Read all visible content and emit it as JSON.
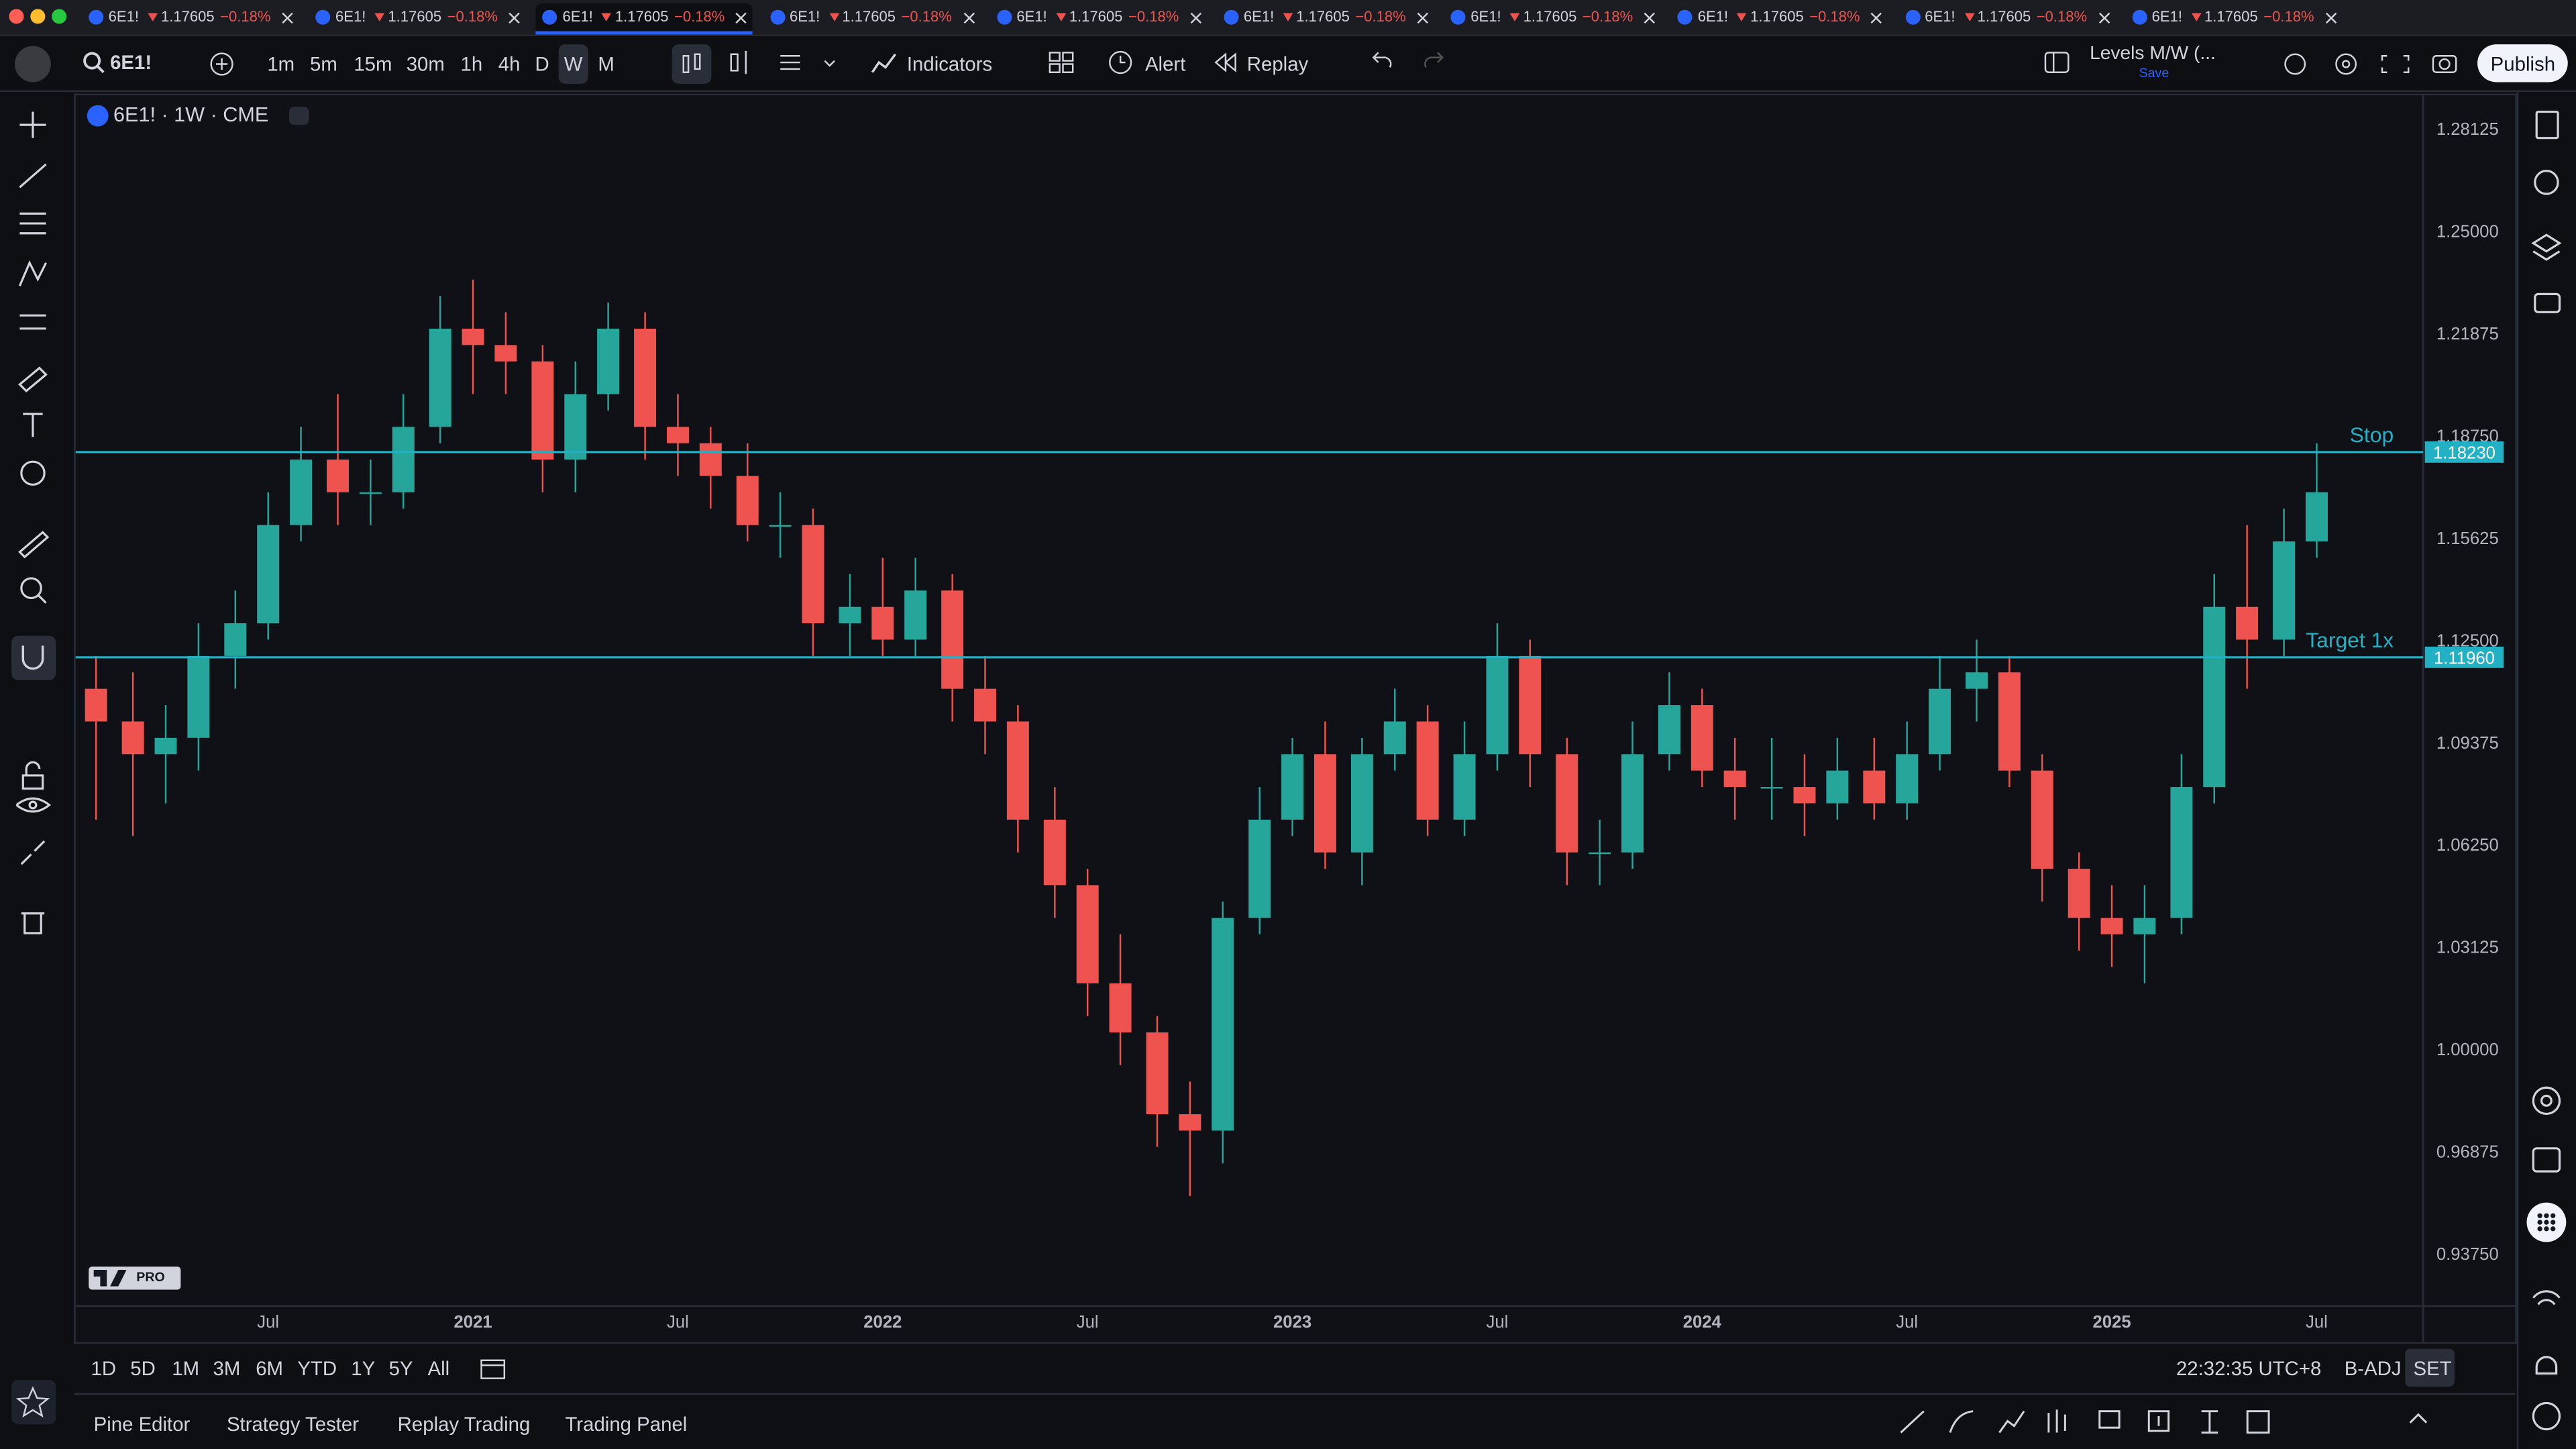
{
  "ui": {
    "tabs": [
      {
        "symbol": "6E1!",
        "price": "1.17605",
        "change": "−0.18%"
      },
      {
        "symbol": "6E1!",
        "price": "1.17605",
        "change": "−0.18%"
      },
      {
        "symbol": "6E1!",
        "price": "1.17605",
        "change": "−0.18%"
      },
      {
        "symbol": "6E1!",
        "price": "1.17605",
        "change": "−0.18%"
      },
      {
        "symbol": "6E1!",
        "price": "1.17605",
        "change": "−0.18%"
      },
      {
        "symbol": "6E1!",
        "price": "1.17605",
        "change": "−0.18%"
      },
      {
        "symbol": "6E1!",
        "price": "1.17605",
        "change": "−0.18%"
      },
      {
        "symbol": "6E1!",
        "price": "1.17605",
        "change": "−0.18%"
      },
      {
        "symbol": "6E1!",
        "price": "1.17605",
        "change": "−0.18%"
      },
      {
        "symbol": "6E1!",
        "price": "1.17605",
        "change": "−0.18%"
      }
    ],
    "symbol": "6E1!",
    "intervals": [
      "1m",
      "5m",
      "15m",
      "30m",
      "1h",
      "4h",
      "D",
      "W",
      "M"
    ],
    "active_interval": "W",
    "indicators": "Indicators",
    "alert": "Alert",
    "replay": "Replay",
    "layout_name": "Levels M/W (...",
    "save": "Save",
    "publish": "Publish",
    "legend": "6E1! · 1W · CME",
    "logo": "PRO",
    "ranges": [
      "1D",
      "5D",
      "1M",
      "3M",
      "6M",
      "YTD",
      "1Y",
      "5Y",
      "All"
    ],
    "clock": "22:32:35 UTC+8",
    "adjust": "B-ADJ",
    "session": "SET",
    "panels": [
      "Pine Editor",
      "Strategy Tester",
      "Replay Trading",
      "Trading Panel"
    ]
  },
  "chart_data": {
    "type": "candlestick",
    "up_color": "#26a69a",
    "down_color": "#ef5350",
    "x": [
      2020.08,
      2020.17,
      2020.25,
      2020.33,
      2020.42,
      2020.5,
      2020.58,
      2020.67,
      2020.75,
      2020.83,
      2020.92,
      2021.0,
      2021.08,
      2021.17,
      2021.25,
      2021.33,
      2021.42,
      2021.5,
      2021.58,
      2021.67,
      2021.75,
      2021.83,
      2021.92,
      2022.0,
      2022.08,
      2022.17,
      2022.25,
      2022.33,
      2022.42,
      2022.5,
      2022.58,
      2022.67,
      2022.75,
      2022.83,
      2022.92,
      2023.0,
      2023.08,
      2023.17,
      2023.25,
      2023.33,
      2023.42,
      2023.5,
      2023.58,
      2023.67,
      2023.75,
      2023.83,
      2023.92,
      2024.0,
      2024.08,
      2024.17,
      2024.25,
      2024.33,
      2024.42,
      2024.5,
      2024.58,
      2024.67,
      2024.75,
      2024.83,
      2024.92,
      2025.0,
      2025.08,
      2025.17,
      2025.25,
      2025.33,
      2025.42,
      2025.5
    ],
    "open": [
      1.11,
      1.1,
      1.09,
      1.095,
      1.12,
      1.13,
      1.16,
      1.18,
      1.17,
      1.17,
      1.19,
      1.22,
      1.215,
      1.21,
      1.18,
      1.2,
      1.22,
      1.19,
      1.185,
      1.175,
      1.16,
      1.16,
      1.13,
      1.135,
      1.125,
      1.14,
      1.11,
      1.1,
      1.07,
      1.05,
      1.02,
      1.005,
      0.98,
      0.975,
      1.04,
      1.07,
      1.09,
      1.06,
      1.09,
      1.1,
      1.07,
      1.09,
      1.12,
      1.09,
      1.06,
      1.06,
      1.09,
      1.105,
      1.085,
      1.08,
      1.08,
      1.075,
      1.085,
      1.075,
      1.09,
      1.11,
      1.115,
      1.085,
      1.055,
      1.04,
      1.035,
      1.04,
      1.08,
      1.135,
      1.125,
      1.155
    ],
    "high": [
      1.12,
      1.115,
      1.105,
      1.13,
      1.14,
      1.17,
      1.19,
      1.2,
      1.18,
      1.2,
      1.23,
      1.235,
      1.225,
      1.215,
      1.21,
      1.228,
      1.225,
      1.2,
      1.19,
      1.185,
      1.17,
      1.165,
      1.145,
      1.15,
      1.15,
      1.145,
      1.12,
      1.105,
      1.08,
      1.055,
      1.035,
      1.01,
      0.99,
      1.045,
      1.08,
      1.095,
      1.1,
      1.095,
      1.11,
      1.105,
      1.1,
      1.13,
      1.125,
      1.095,
      1.07,
      1.1,
      1.115,
      1.11,
      1.095,
      1.095,
      1.09,
      1.095,
      1.095,
      1.1,
      1.12,
      1.125,
      1.12,
      1.09,
      1.06,
      1.05,
      1.05,
      1.09,
      1.145,
      1.16,
      1.165,
      1.185
    ],
    "low": [
      1.07,
      1.065,
      1.075,
      1.085,
      1.11,
      1.125,
      1.155,
      1.16,
      1.16,
      1.165,
      1.185,
      1.2,
      1.2,
      1.17,
      1.17,
      1.195,
      1.18,
      1.175,
      1.165,
      1.155,
      1.15,
      1.12,
      1.12,
      1.12,
      1.12,
      1.1,
      1.09,
      1.06,
      1.04,
      1.01,
      0.995,
      0.97,
      0.955,
      0.965,
      1.035,
      1.065,
      1.055,
      1.05,
      1.085,
      1.065,
      1.065,
      1.085,
      1.08,
      1.05,
      1.05,
      1.055,
      1.085,
      1.08,
      1.07,
      1.07,
      1.065,
      1.07,
      1.07,
      1.07,
      1.085,
      1.1,
      1.08,
      1.045,
      1.03,
      1.025,
      1.02,
      1.035,
      1.075,
      1.11,
      1.12,
      1.15
    ],
    "close": [
      1.1,
      1.09,
      1.095,
      1.12,
      1.13,
      1.16,
      1.18,
      1.17,
      1.17,
      1.19,
      1.22,
      1.215,
      1.21,
      1.18,
      1.2,
      1.22,
      1.19,
      1.185,
      1.175,
      1.16,
      1.16,
      1.13,
      1.135,
      1.125,
      1.14,
      1.11,
      1.1,
      1.07,
      1.05,
      1.02,
      1.005,
      0.98,
      0.975,
      1.04,
      1.07,
      1.09,
      1.06,
      1.09,
      1.1,
      1.07,
      1.09,
      1.12,
      1.09,
      1.06,
      1.06,
      1.09,
      1.105,
      1.085,
      1.08,
      1.08,
      1.075,
      1.085,
      1.075,
      1.09,
      1.11,
      1.115,
      1.085,
      1.055,
      1.04,
      1.035,
      1.04,
      1.08,
      1.135,
      1.125,
      1.155,
      1.17
    ],
    "levels": [
      {
        "name": "Stop",
        "value": 1.1823,
        "label": "1.18230",
        "color": "#22b1c4"
      },
      {
        "name": "Target 1x",
        "value": 1.1196,
        "label": "1.11960",
        "color": "#22b1c4"
      }
    ],
    "xlim": [
      2020.03,
      2025.76
    ],
    "xticks": [
      {
        "value": 2020.5,
        "label": "Jul"
      },
      2021,
      {
        "value": 2021.5,
        "label": "Jul"
      },
      2022,
      {
        "value": 2022.5,
        "label": "Jul"
      },
      2023,
      {
        "value": 2023.5,
        "label": "Jul"
      },
      2024,
      {
        "value": 2024.5,
        "label": "Jul"
      },
      2025,
      {
        "value": 2025.5,
        "label": "Jul"
      }
    ],
    "ylim": [
      0.9214,
      1.2913
    ],
    "yticks": [
      {
        "value": 0.9375,
        "label": "0.93750"
      },
      0.96875,
      {
        "value": 1.0,
        "label": "1.00000"
      },
      1.03125,
      {
        "value": 1.0625,
        "label": "1.06250"
      },
      1.09375,
      {
        "value": 1.125,
        "label": "1.12500"
      },
      1.15625,
      {
        "value": 1.1875,
        "label": "1.18750"
      },
      1.21875,
      {
        "value": 1.25,
        "label": "1.25000"
      },
      1.28125
    ],
    "grid": false
  }
}
